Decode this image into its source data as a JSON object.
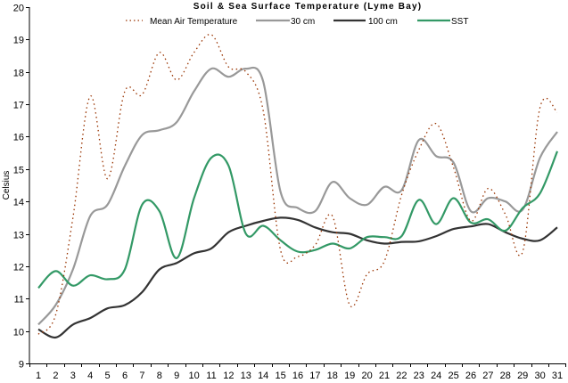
{
  "chart_data": {
    "type": "line",
    "title": "Soil & Sea Surface Temperature (Lyme Bay)",
    "xlabel": "",
    "ylabel": "Celsius",
    "xlim": [
      1,
      31
    ],
    "ylim": [
      9,
      20
    ],
    "grid": false,
    "legend_position": "top",
    "x": [
      1,
      2,
      3,
      4,
      5,
      6,
      7,
      8,
      9,
      10,
      11,
      12,
      13,
      14,
      15,
      16,
      17,
      18,
      19,
      20,
      21,
      22,
      23,
      24,
      25,
      26,
      27,
      28,
      29,
      30,
      31
    ],
    "x_tick_labels": [
      "1",
      "2",
      "3",
      "4",
      "5",
      "6",
      "7",
      "8",
      "9",
      "10",
      "11",
      "12",
      "13",
      "14",
      "15",
      "16",
      "17",
      "18",
      "19",
      "20",
      "21",
      "22",
      "23",
      "24",
      "25",
      "26",
      "27",
      "28",
      "29",
      "30",
      "31"
    ],
    "y_ticks": [
      9,
      10,
      11,
      12,
      13,
      14,
      15,
      16,
      17,
      18,
      19,
      20
    ],
    "y_tick_labels": [
      "9",
      "10",
      "11",
      "12",
      "13",
      "14",
      "15",
      "16",
      "17",
      "18",
      "19",
      "20"
    ],
    "series": [
      {
        "name": "Mean Air Temperature",
        "color": "#993300",
        "style": "dotted",
        "values": [
          9.9,
          10.5,
          13.5,
          17.25,
          14.7,
          17.4,
          17.3,
          18.6,
          17.75,
          18.6,
          19.15,
          18.15,
          18.0,
          16.8,
          12.5,
          12.3,
          12.65,
          13.55,
          10.8,
          11.75,
          12.15,
          14.2,
          15.6,
          16.4,
          15.05,
          13.4,
          14.4,
          13.6,
          12.45,
          16.9,
          16.75
        ]
      },
      {
        "name": "30 cm",
        "color": "#999999",
        "style": "solid",
        "values": [
          10.2,
          10.8,
          11.9,
          13.55,
          13.9,
          15.1,
          16.05,
          16.2,
          16.45,
          17.4,
          18.1,
          17.85,
          18.1,
          17.7,
          14.3,
          13.8,
          13.7,
          14.6,
          14.1,
          13.9,
          14.45,
          14.35,
          15.9,
          15.4,
          15.2,
          13.7,
          14.1,
          14.0,
          13.75,
          15.35,
          16.15
        ]
      },
      {
        "name": "100 cm",
        "color": "#333333",
        "style": "solid",
        "values": [
          10.05,
          9.8,
          10.2,
          10.4,
          10.7,
          10.8,
          11.2,
          11.9,
          12.1,
          12.4,
          12.55,
          13.05,
          13.25,
          13.4,
          13.5,
          13.43,
          13.2,
          13.05,
          13.0,
          12.8,
          12.7,
          12.75,
          12.77,
          12.93,
          13.15,
          13.23,
          13.3,
          13.05,
          12.85,
          12.8,
          13.2
        ]
      },
      {
        "name": "SST",
        "color": "#339966",
        "style": "solid",
        "values": [
          11.33,
          11.85,
          11.4,
          11.72,
          11.6,
          11.9,
          13.9,
          13.7,
          12.25,
          14.1,
          15.35,
          15.1,
          13.0,
          13.25,
          12.8,
          12.45,
          12.5,
          12.7,
          12.55,
          12.9,
          12.9,
          12.93,
          14.05,
          13.3,
          14.1,
          13.35,
          13.45,
          13.1,
          13.8,
          14.25,
          15.55
        ]
      }
    ]
  }
}
